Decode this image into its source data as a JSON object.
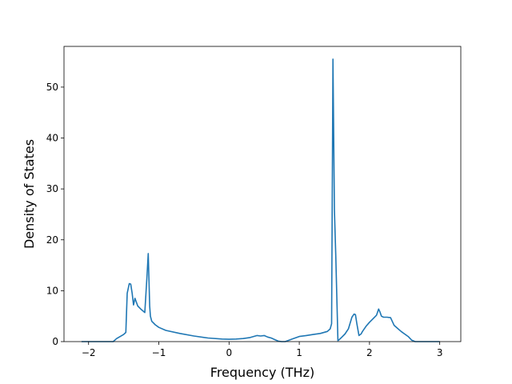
{
  "chart_data": {
    "type": "line",
    "title": "",
    "xlabel": "Frequency (THz)",
    "ylabel": "Density of States",
    "xlim": [
      -2.35,
      3.3
    ],
    "ylim": [
      0,
      58
    ],
    "grid": false,
    "legend": "none",
    "x_ticks": [
      -2,
      -1,
      0,
      1,
      2,
      3
    ],
    "x_tick_labels": [
      "−2",
      "−1",
      "0",
      "1",
      "2",
      "3"
    ],
    "y_ticks": [
      0,
      10,
      20,
      30,
      40,
      50
    ],
    "y_tick_labels": [
      "0",
      "10",
      "20",
      "30",
      "40",
      "50"
    ],
    "line_color": "#1f77b4",
    "series": [
      {
        "x": [
          -2.1,
          -1.95,
          -1.8,
          -1.65,
          -1.6,
          -1.5,
          -1.47,
          -1.45,
          -1.42,
          -1.4,
          -1.38,
          -1.36,
          -1.34,
          -1.3,
          -1.25,
          -1.2,
          -1.17,
          -1.15,
          -1.13,
          -1.12,
          -1.1,
          -1.05,
          -1.0,
          -0.9,
          -0.7,
          -0.5,
          -0.3,
          -0.1,
          0.0,
          0.1,
          0.2,
          0.3,
          0.35,
          0.4,
          0.45,
          0.5,
          0.55,
          0.6,
          0.65,
          0.7,
          0.75,
          0.8,
          0.9,
          1.0,
          1.1,
          1.2,
          1.3,
          1.4,
          1.44,
          1.46,
          1.48,
          1.5,
          1.52,
          1.55,
          1.57,
          1.6,
          1.65,
          1.7,
          1.75,
          1.78,
          1.8,
          1.82,
          1.85,
          1.88,
          1.9,
          1.92,
          1.95,
          2.0,
          2.05,
          2.1,
          2.13,
          2.15,
          2.17,
          2.2,
          2.25,
          2.3,
          2.35,
          2.4,
          2.45,
          2.5,
          2.55,
          2.6,
          2.65,
          3.0
        ],
        "y": [
          0,
          0,
          0,
          0,
          0.6,
          1.4,
          1.8,
          9.5,
          11.4,
          11.3,
          9.5,
          7.2,
          8.5,
          7.0,
          6.3,
          5.7,
          12.5,
          17.3,
          7.0,
          5.0,
          4.0,
          3.3,
          2.8,
          2.2,
          1.6,
          1.1,
          0.7,
          0.5,
          0.45,
          0.5,
          0.6,
          0.8,
          1.0,
          1.2,
          1.1,
          1.2,
          0.9,
          0.7,
          0.4,
          0.1,
          0.0,
          0.0,
          0.5,
          1.0,
          1.2,
          1.4,
          1.6,
          2.0,
          2.5,
          3.5,
          55.5,
          26.0,
          17.0,
          0.2,
          0.4,
          0.8,
          1.5,
          2.5,
          4.8,
          5.4,
          5.3,
          3.5,
          1.2,
          1.5,
          2.0,
          2.4,
          3.0,
          3.8,
          4.5,
          5.2,
          6.4,
          5.8,
          5.0,
          4.8,
          4.8,
          4.7,
          3.2,
          2.6,
          2.0,
          1.5,
          1.0,
          0.3,
          0.0,
          0.0
        ]
      }
    ]
  }
}
